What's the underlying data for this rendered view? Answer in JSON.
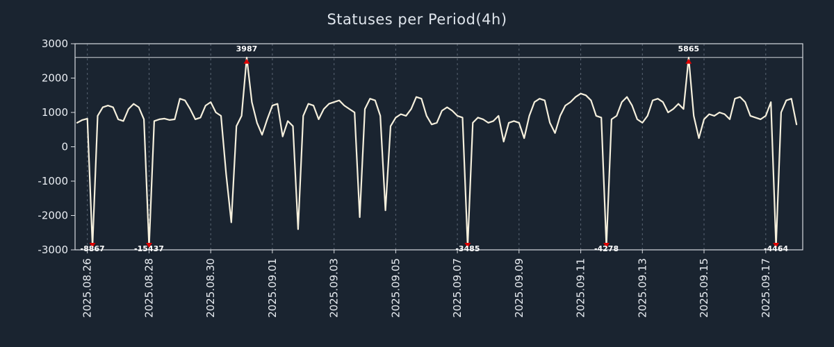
{
  "title": "Statuses per Period(4h)",
  "colors": {
    "background": "#1a2430",
    "line": "#f6f0dd",
    "marker": "#dd0000",
    "grid": "#5a6573",
    "frame": "#d9dde2",
    "text": "#e9edf2",
    "annotation": "#ffffff",
    "clip_line": "#cfd4da"
  },
  "chart_data": {
    "type": "line",
    "title": "Statuses per Period(4h)",
    "xlabel": "",
    "ylabel": "",
    "xlim": [
      -0.4,
      23.2
    ],
    "ylim": [
      -3000,
      3000
    ],
    "grid": "vertical-dashed",
    "legend": "none",
    "clip_top": 2600,
    "clip_bottom": -2900,
    "y_ticks": [
      3000,
      2000,
      1000,
      0,
      -1000,
      -2000,
      -3000
    ],
    "x_ticks": [
      0,
      2,
      4,
      6,
      8,
      10,
      12,
      14,
      16,
      18,
      20,
      22
    ],
    "x_tick_labels": [
      "2025.08.26",
      "2025.08.28",
      "2025.08.30",
      "2025.09.01",
      "2025.09.03",
      "2025.09.05",
      "2025.09.07",
      "2025.09.09",
      "2025.09.11",
      "2025.09.13",
      "2025.09.15",
      "2025.09.17"
    ],
    "x_start_day": -0.3333333,
    "x_step_day": 0.1666667,
    "series": [
      {
        "name": "statuses",
        "values": [
          700,
          780,
          820,
          -8867,
          900,
          1150,
          1200,
          1150,
          800,
          750,
          1100,
          1250,
          1150,
          800,
          -15437,
          750,
          800,
          820,
          780,
          800,
          1400,
          1350,
          1100,
          800,
          850,
          1200,
          1300,
          1000,
          900,
          -800,
          -2200,
          600,
          900,
          3987,
          1300,
          700,
          350,
          800,
          1200,
          1250,
          300,
          750,
          600,
          -2400,
          900,
          1250,
          1200,
          800,
          1100,
          1250,
          1300,
          1350,
          1200,
          1100,
          1000,
          -2050,
          1100,
          1400,
          1350,
          900,
          -1850,
          600,
          850,
          950,
          900,
          1100,
          1450,
          1400,
          900,
          650,
          700,
          1050,
          1150,
          1050,
          900,
          850,
          -3485,
          700,
          850,
          800,
          700,
          750,
          900,
          150,
          700,
          750,
          700,
          250,
          900,
          1300,
          1400,
          1350,
          700,
          400,
          900,
          1200,
          1300,
          1450,
          1550,
          1500,
          1350,
          900,
          850,
          -4278,
          800,
          900,
          1300,
          1450,
          1200,
          800,
          700,
          900,
          1350,
          1400,
          1300,
          1000,
          1100,
          1250,
          1100,
          5865,
          900,
          250,
          800,
          950,
          900,
          1000,
          950,
          800,
          1400,
          1450,
          1300,
          900,
          850,
          800,
          900,
          1300,
          -4464,
          1000,
          1350,
          1400,
          650
        ]
      }
    ],
    "annotations": [
      {
        "day": 0.1666667,
        "value": -8867,
        "label": "-8867",
        "direction": "down"
      },
      {
        "day": 2.0,
        "value": -15437,
        "label": "-15437",
        "direction": "down"
      },
      {
        "day": 5.1666667,
        "value": 3987,
        "label": "3987",
        "direction": "up"
      },
      {
        "day": 12.3333333,
        "value": -3485,
        "label": "-3485",
        "direction": "down"
      },
      {
        "day": 16.8333333,
        "value": -4278,
        "label": "-4278",
        "direction": "down"
      },
      {
        "day": 19.5,
        "value": 5865,
        "label": "5865",
        "direction": "up"
      },
      {
        "day": 22.3333333,
        "value": -4464,
        "label": "-4464",
        "direction": "down"
      }
    ]
  }
}
